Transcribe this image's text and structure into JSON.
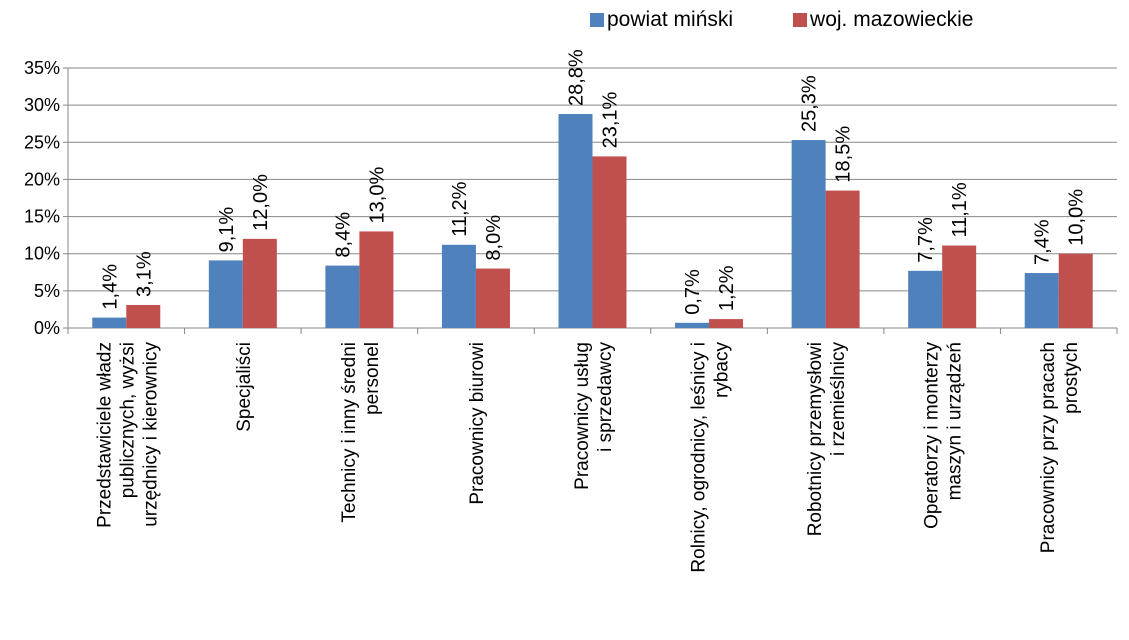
{
  "chart_data": {
    "type": "bar",
    "categories": [
      [
        "Przedstawiciele władz",
        "publicznych, wyżsi",
        "urzędnicy i kierownicy"
      ],
      [
        "Specjaliści"
      ],
      [
        "Technicy i inny średni",
        "personel"
      ],
      [
        "Pracownicy biurowi"
      ],
      [
        "Pracownicy usług",
        "i sprzedawcy"
      ],
      [
        "Rolnicy, ogrodnicy, leśnicy i",
        "rybacy"
      ],
      [
        "Robotnicy przemysłowi",
        "i rzemieślnicy"
      ],
      [
        "Operatorzy i monterzy",
        "maszyn i urządzeń"
      ],
      [
        "Pracownicy przy pracach",
        "prostych"
      ]
    ],
    "series": [
      {
        "name": "powiat miński",
        "color": "#4f81bd",
        "values": [
          1.4,
          9.1,
          8.4,
          11.2,
          28.8,
          0.7,
          25.3,
          7.7,
          7.4
        ],
        "labels": [
          "1,4%",
          "9,1%",
          "8,4%",
          "11,2%",
          "28,8%",
          "0,7%",
          "25,3%",
          "7,7%",
          "7,4%"
        ]
      },
      {
        "name": "woj. mazowieckie",
        "color": "#c0504d",
        "values": [
          3.1,
          12.0,
          13.0,
          8.0,
          23.1,
          1.2,
          18.5,
          11.1,
          10.0
        ],
        "labels": [
          "3,1%",
          "12,0%",
          "13,0%",
          "8,0%",
          "23,1%",
          "1,2%",
          "18,5%",
          "11,1%",
          "10,0%"
        ]
      }
    ],
    "ylim": [
      0,
      35
    ],
    "yticks": [
      "0%",
      "5%",
      "10%",
      "15%",
      "20%",
      "25%",
      "30%",
      "35%"
    ],
    "grid": true,
    "legend_position": "top-right"
  }
}
